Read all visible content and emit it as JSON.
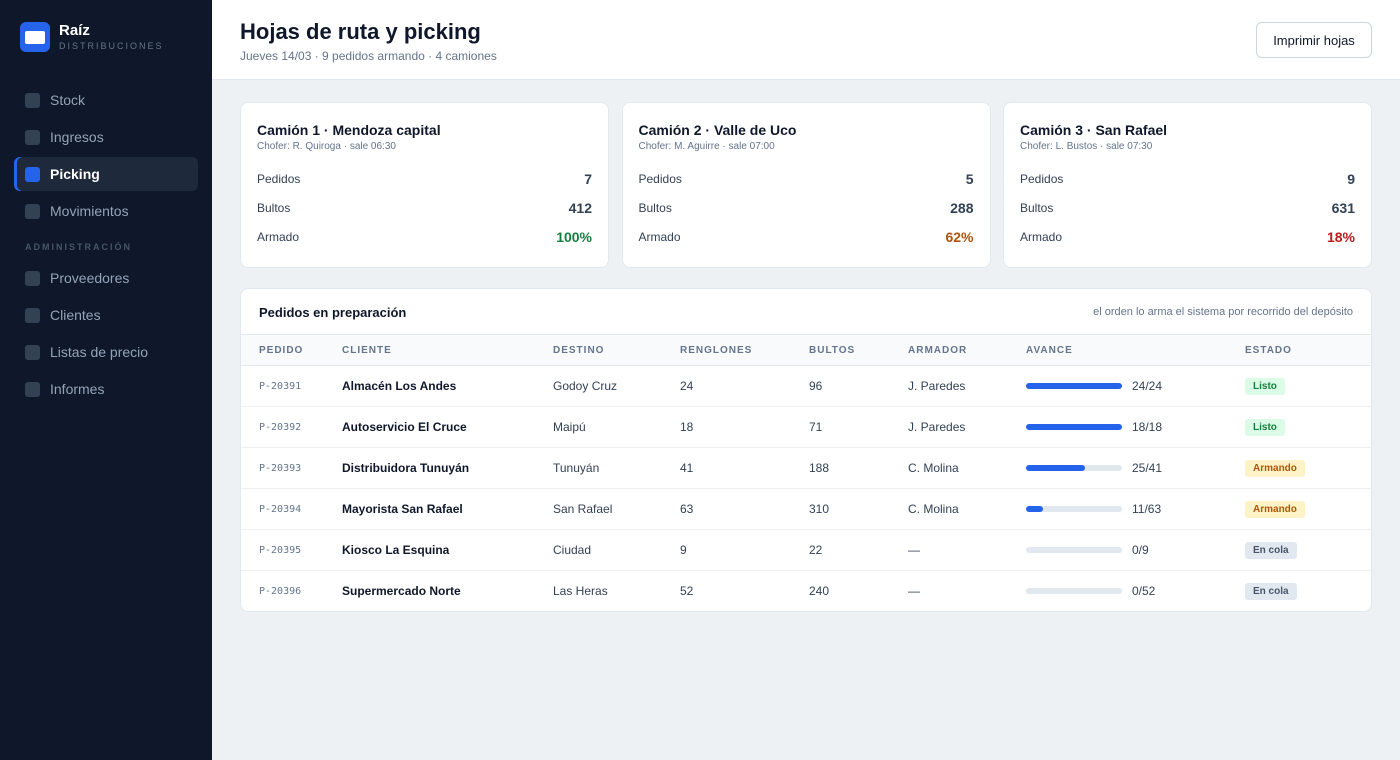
{
  "brand": {
    "name": "Raíz",
    "subtitle": "DISTRIBUCIONES"
  },
  "sidebar": {
    "items": [
      {
        "label": "Stock",
        "active": false
      },
      {
        "label": "Ingresos",
        "active": false
      },
      {
        "label": "Picking",
        "active": true
      },
      {
        "label": "Movimientos",
        "active": false
      }
    ],
    "admin_section": "ADMINISTRACIÓN",
    "admin_items": [
      {
        "label": "Proveedores"
      },
      {
        "label": "Clientes"
      },
      {
        "label": "Listas de precio"
      },
      {
        "label": "Informes"
      }
    ]
  },
  "header": {
    "title": "Hojas de ruta y picking",
    "subtitle": "Jueves 14/03 · 9 pedidos armando · 4 camiones",
    "print_label": "Imprimir hojas"
  },
  "trucks": [
    {
      "title": "Camión 1 · Mendoza capital",
      "driver": "Chofer: R. Quiroga · sale 06:30",
      "pedidos_label": "Pedidos",
      "pedidos": "7",
      "bultos_label": "Bultos",
      "bultos": "412",
      "armado_label": "Armado",
      "armado": "100%",
      "armado_color": "#15803d"
    },
    {
      "title": "Camión 2 · Valle de Uco",
      "driver": "Chofer: M. Aguirre · sale 07:00",
      "pedidos_label": "Pedidos",
      "pedidos": "5",
      "bultos_label": "Bultos",
      "bultos": "288",
      "armado_label": "Armado",
      "armado": "62%",
      "armado_color": "#b45309"
    },
    {
      "title": "Camión 3 · San Rafael",
      "driver": "Chofer: L. Bustos · sale 07:30",
      "pedidos_label": "Pedidos",
      "pedidos": "9",
      "bultos_label": "Bultos",
      "bultos": "631",
      "armado_label": "Armado",
      "armado": "18%",
      "armado_color": "#b91c1c"
    }
  ],
  "orders": {
    "title": "Pedidos en preparación",
    "note": "el orden lo arma el sistema por recorrido del depósito",
    "columns": [
      "PEDIDO",
      "CLIENTE",
      "DESTINO",
      "RENGLONES",
      "BULTOS",
      "ARMADOR",
      "AVANCE",
      "ESTADO"
    ],
    "rows": [
      {
        "id": "P-20391",
        "client": "Almacén Los Andes",
        "dest": "Godoy Cruz",
        "renglones": "24",
        "bultos": "96",
        "armador": "J. Paredes",
        "progress_text": "24/24",
        "progress": 1.0,
        "status": "Listo",
        "status_kind": "listo"
      },
      {
        "id": "P-20392",
        "client": "Autoservicio El Cruce",
        "dest": "Maipú",
        "renglones": "18",
        "bultos": "71",
        "armador": "J. Paredes",
        "progress_text": "18/18",
        "progress": 1.0,
        "status": "Listo",
        "status_kind": "listo"
      },
      {
        "id": "P-20393",
        "client": "Distribuidora Tunuyán",
        "dest": "Tunuyán",
        "renglones": "41",
        "bultos": "188",
        "armador": "C. Molina",
        "progress_text": "25/41",
        "progress": 0.61,
        "status": "Armando",
        "status_kind": "armando"
      },
      {
        "id": "P-20394",
        "client": "Mayorista San Rafael",
        "dest": "San Rafael",
        "renglones": "63",
        "bultos": "310",
        "armador": "C. Molina",
        "progress_text": "11/63",
        "progress": 0.175,
        "status": "Armando",
        "status_kind": "armando"
      },
      {
        "id": "P-20395",
        "client": "Kiosco La Esquina",
        "dest": "Ciudad",
        "renglones": "9",
        "bultos": "22",
        "armador": "—",
        "progress_text": "0/9",
        "progress": 0,
        "status": "En cola",
        "status_kind": "cola"
      },
      {
        "id": "P-20396",
        "client": "Supermercado Norte",
        "dest": "Las Heras",
        "renglones": "52",
        "bultos": "240",
        "armador": "—",
        "progress_text": "0/52",
        "progress": 0,
        "status": "En cola",
        "status_kind": "cola"
      }
    ]
  }
}
